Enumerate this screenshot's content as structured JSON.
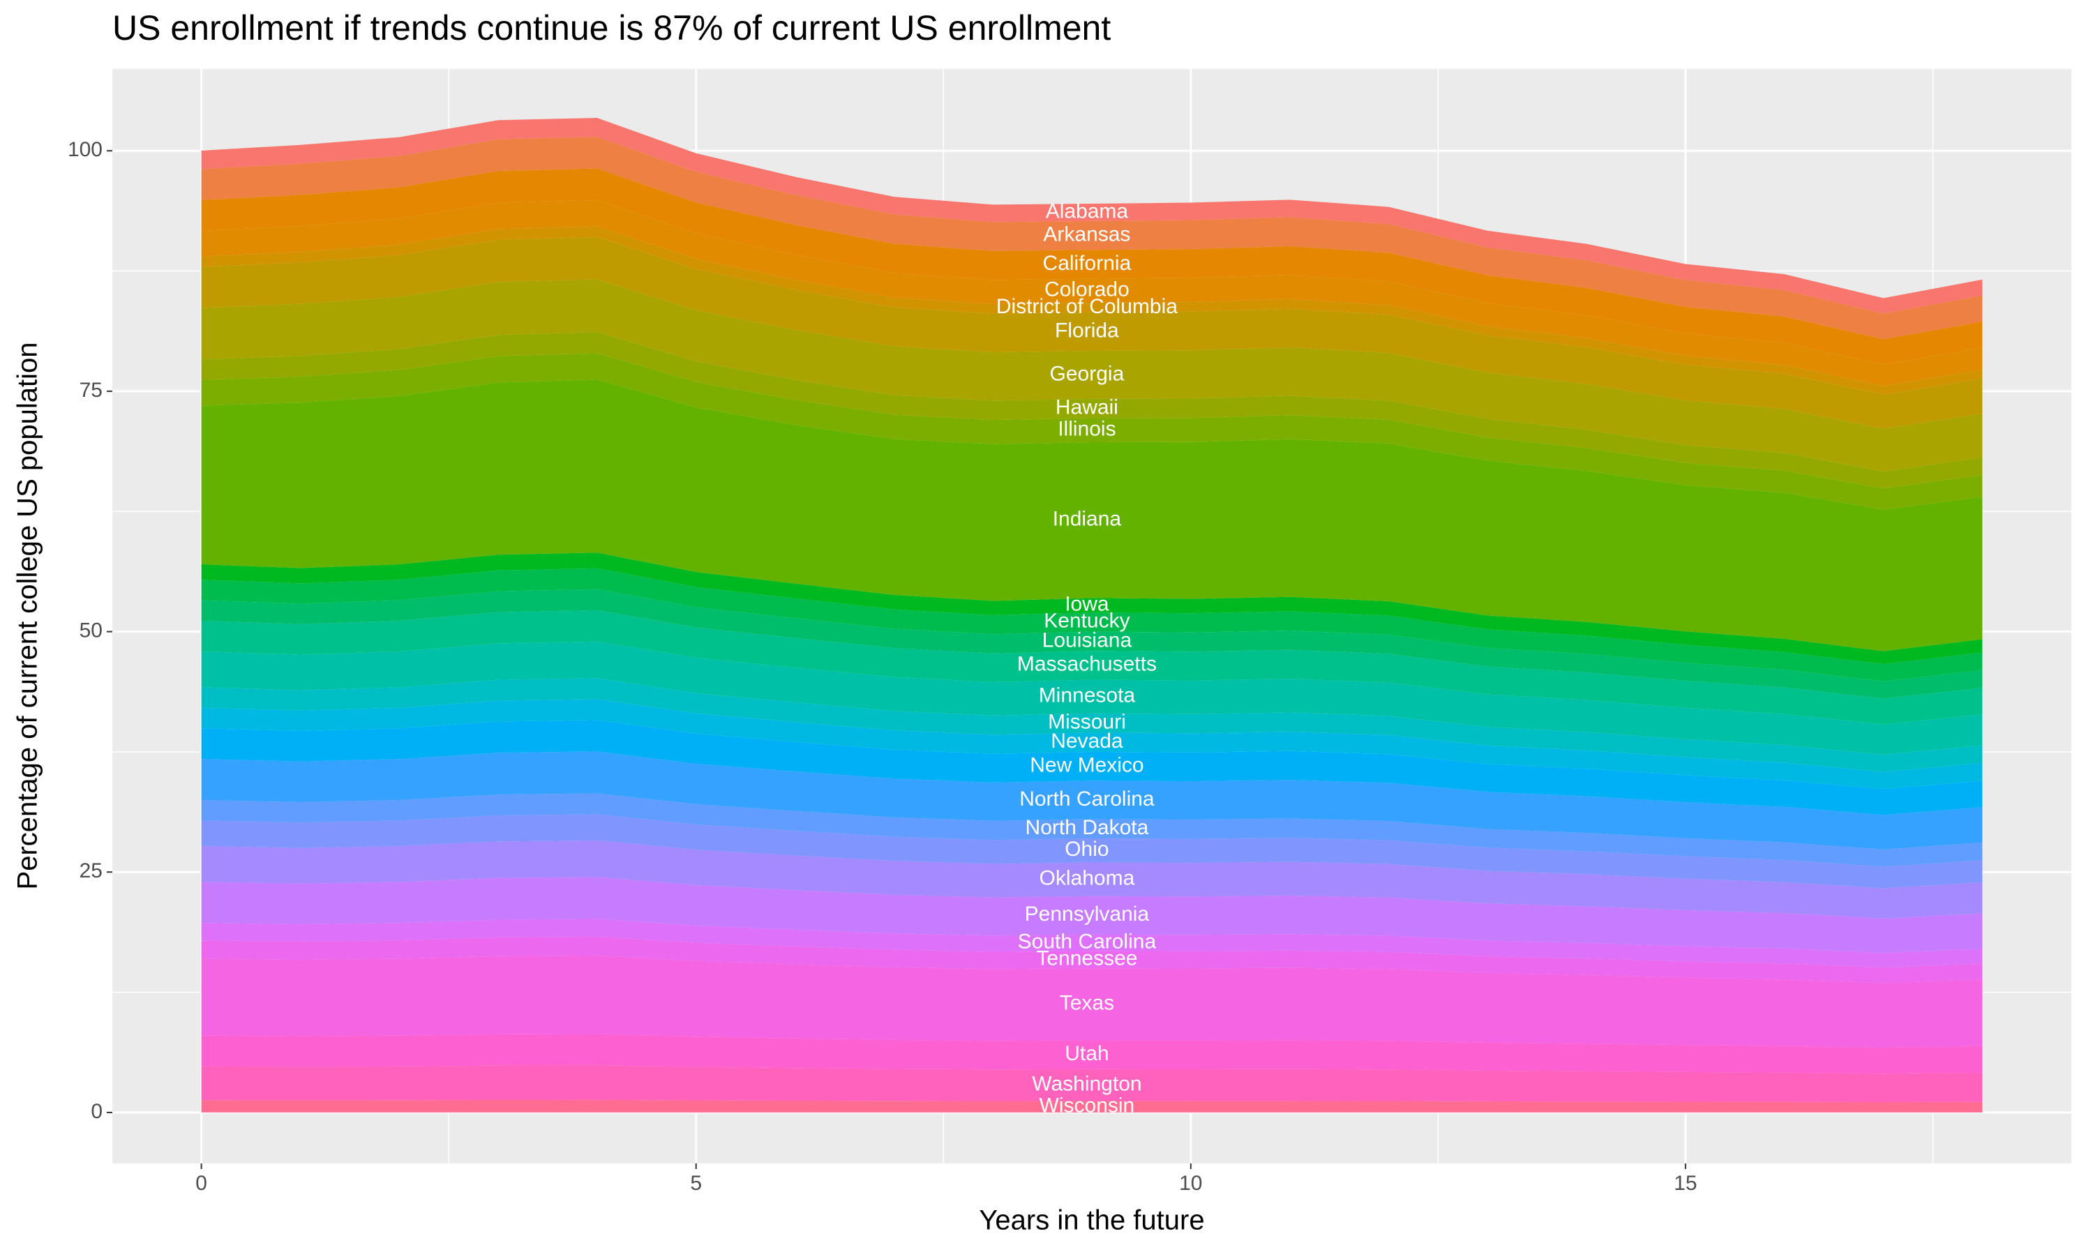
{
  "chart_data": {
    "type": "stacked_area",
    "title": "US enrollment if trends continue is 87% of current US enrollment",
    "x_label": "Years in the future",
    "y_label": "Percentage of current college US population",
    "x": [
      0,
      1,
      2,
      3,
      4,
      5,
      6,
      7,
      8,
      9,
      10,
      11,
      12,
      13,
      14,
      15,
      16,
      17,
      18
    ],
    "xlim": [
      -0.9,
      18.9
    ],
    "xticks": [
      0,
      5,
      10,
      15
    ],
    "ylim": [
      -5.3,
      108.5
    ],
    "yticks": [
      0,
      25,
      50,
      75,
      100
    ],
    "grid": true,
    "series": [
      {
        "name": "Alabama",
        "color": "#f8766d",
        "values": [
          1.92,
          1.95,
          1.95,
          1.98,
          1.97,
          1.92,
          1.87,
          1.83,
          1.81,
          1.8,
          1.81,
          1.81,
          1.79,
          1.74,
          1.71,
          1.67,
          1.65,
          1.6,
          1.64
        ]
      },
      {
        "name": "Arkansas",
        "color": "#ee8044",
        "values": [
          3.21,
          3.24,
          3.26,
          3.3,
          3.29,
          3.2,
          3.12,
          3.05,
          3.01,
          3.0,
          3.01,
          3.01,
          2.98,
          2.89,
          2.86,
          2.78,
          2.75,
          2.66,
          2.73
        ]
      },
      {
        "name": "California",
        "color": "#e58700",
        "values": [
          3.21,
          3.24,
          3.26,
          3.3,
          3.29,
          3.2,
          3.12,
          3.05,
          3.01,
          3.0,
          3.01,
          3.01,
          2.98,
          2.89,
          2.86,
          2.78,
          2.75,
          2.66,
          2.73
        ]
      },
      {
        "name": "Colorado",
        "color": "#e08b00",
        "values": [
          2.67,
          2.7,
          2.71,
          2.75,
          2.74,
          2.66,
          2.6,
          2.54,
          2.51,
          2.5,
          2.51,
          2.51,
          2.48,
          2.41,
          2.38,
          2.32,
          2.29,
          2.22,
          2.28
        ]
      },
      {
        "name": "District of Columbia",
        "color": "#d29300",
        "values": [
          1.07,
          1.08,
          1.09,
          1.1,
          1.1,
          1.07,
          1.04,
          1.02,
          1.0,
          1.0,
          1.0,
          1.0,
          0.99,
          0.96,
          0.95,
          0.93,
          0.92,
          0.89,
          0.91
        ]
      },
      {
        "name": "Florida",
        "color": "#c09b00",
        "values": [
          4.28,
          4.32,
          4.34,
          4.4,
          4.39,
          4.26,
          4.16,
          4.06,
          4.02,
          4.0,
          4.02,
          4.02,
          3.97,
          3.86,
          3.81,
          3.71,
          3.66,
          3.55,
          3.64
        ]
      },
      {
        "name": "Georgia",
        "color": "#a9a400",
        "values": [
          5.35,
          5.41,
          5.43,
          5.51,
          5.49,
          5.33,
          5.2,
          5.08,
          5.02,
          5.0,
          5.02,
          5.02,
          4.96,
          4.82,
          4.76,
          4.64,
          4.58,
          4.44,
          4.56
        ]
      },
      {
        "name": "Hawaii",
        "color": "#94a900",
        "values": [
          2.14,
          2.16,
          2.17,
          2.2,
          2.19,
          2.13,
          2.08,
          2.03,
          2.01,
          2.0,
          2.01,
          2.01,
          1.98,
          1.93,
          1.9,
          1.85,
          1.83,
          1.77,
          1.82
        ]
      },
      {
        "name": "Illinois",
        "color": "#7cae00",
        "values": [
          2.67,
          2.7,
          2.71,
          2.75,
          2.74,
          2.66,
          2.6,
          2.54,
          2.51,
          2.5,
          2.51,
          2.51,
          2.48,
          2.41,
          2.38,
          2.32,
          2.29,
          2.22,
          2.28
        ]
      },
      {
        "name": "Indiana",
        "color": "#64b200",
        "values": [
          16.5,
          17.2,
          17.5,
          17.9,
          18.0,
          17.1,
          16.5,
          16.2,
          16.3,
          16.2,
          16.3,
          16.4,
          16.4,
          16.1,
          15.7,
          15.2,
          15.2,
          14.7,
          14.8
        ]
      },
      {
        "name": "Iowa",
        "color": "#00b81f",
        "values": [
          1.6,
          1.59,
          1.6,
          1.63,
          1.63,
          1.58,
          1.54,
          1.51,
          1.49,
          1.5,
          1.5,
          1.5,
          1.49,
          1.45,
          1.43,
          1.4,
          1.38,
          1.35,
          1.38
        ]
      },
      {
        "name": "Kentucky",
        "color": "#00bb4e",
        "values": [
          2.13,
          2.12,
          2.13,
          2.17,
          2.18,
          2.1,
          2.06,
          2.01,
          1.99,
          2.0,
          2.0,
          2.0,
          1.99,
          1.93,
          1.91,
          1.87,
          1.84,
          1.79,
          1.84
        ]
      },
      {
        "name": "Louisiana",
        "color": "#00bd6c",
        "values": [
          2.13,
          2.12,
          2.13,
          2.17,
          2.18,
          2.1,
          2.06,
          2.01,
          1.99,
          2.0,
          2.0,
          2.0,
          1.99,
          1.93,
          1.91,
          1.87,
          1.84,
          1.79,
          1.84
        ]
      },
      {
        "name": "Massachusetts",
        "color": "#00c08b",
        "values": [
          3.2,
          3.17,
          3.2,
          3.25,
          3.26,
          3.15,
          3.08,
          3.02,
          2.98,
          3.0,
          2.99,
          3.01,
          2.98,
          2.9,
          2.86,
          2.81,
          2.76,
          2.69,
          2.76
        ]
      },
      {
        "name": "Minnesota",
        "color": "#00c1a7",
        "values": [
          3.73,
          3.7,
          3.73,
          3.79,
          3.81,
          3.68,
          3.6,
          3.52,
          3.48,
          3.5,
          3.49,
          3.51,
          3.48,
          3.38,
          3.34,
          3.27,
          3.22,
          3.14,
          3.22
        ]
      },
      {
        "name": "Missouri",
        "color": "#00bfc4",
        "values": [
          2.13,
          2.12,
          2.13,
          2.17,
          2.18,
          2.1,
          2.06,
          2.01,
          1.99,
          2.0,
          2.0,
          2.0,
          1.99,
          1.93,
          1.91,
          1.87,
          1.84,
          1.79,
          1.84
        ]
      },
      {
        "name": "Nevada",
        "color": "#00b9e3",
        "values": [
          2.13,
          2.12,
          2.13,
          2.17,
          2.18,
          2.1,
          2.06,
          2.01,
          1.99,
          2.0,
          2.0,
          2.0,
          1.99,
          1.93,
          1.91,
          1.87,
          1.84,
          1.79,
          1.84
        ]
      },
      {
        "name": "New Mexico",
        "color": "#00b0f6",
        "values": [
          3.2,
          3.17,
          3.2,
          3.25,
          3.26,
          3.15,
          3.08,
          3.02,
          2.98,
          3.0,
          2.99,
          3.01,
          2.98,
          2.9,
          2.86,
          2.81,
          2.76,
          2.69,
          2.76
        ]
      },
      {
        "name": "North Carolina",
        "color": "#35a2ff",
        "values": [
          4.26,
          4.23,
          4.26,
          4.34,
          4.35,
          4.2,
          4.11,
          4.02,
          3.98,
          4.0,
          3.99,
          4.01,
          3.97,
          3.86,
          3.81,
          3.74,
          3.68,
          3.59,
          3.68
        ]
      },
      {
        "name": "North Dakota",
        "color": "#619cff",
        "values": [
          2.13,
          2.12,
          2.13,
          2.17,
          2.18,
          2.1,
          2.06,
          2.01,
          1.99,
          2.0,
          2.0,
          2.0,
          1.99,
          1.93,
          1.91,
          1.87,
          1.84,
          1.79,
          1.84
        ]
      },
      {
        "name": "Ohio",
        "color": "#8195ff",
        "values": [
          2.66,
          2.65,
          2.66,
          2.71,
          2.72,
          2.63,
          2.57,
          2.52,
          2.49,
          2.5,
          2.5,
          2.51,
          2.48,
          2.42,
          2.38,
          2.34,
          2.3,
          2.24,
          2.3
        ]
      },
      {
        "name": "Oklahoma",
        "color": "#a58aff",
        "values": [
          3.73,
          3.7,
          3.73,
          3.79,
          3.81,
          3.68,
          3.6,
          3.52,
          3.48,
          3.5,
          3.49,
          3.51,
          3.48,
          3.38,
          3.34,
          3.27,
          3.22,
          3.14,
          3.22
        ]
      },
      {
        "name": "Pennsylvania",
        "color": "#c77cff",
        "values": [
          4.26,
          4.23,
          4.26,
          4.34,
          4.35,
          4.2,
          4.11,
          4.02,
          3.98,
          4.0,
          3.99,
          4.01,
          3.97,
          3.86,
          3.81,
          3.74,
          3.68,
          3.59,
          3.68
        ]
      },
      {
        "name": "South Carolina",
        "color": "#dd71fa",
        "values": [
          1.81,
          1.8,
          1.81,
          1.84,
          1.85,
          1.79,
          1.75,
          1.71,
          1.69,
          1.7,
          1.7,
          1.7,
          1.69,
          1.64,
          1.62,
          1.59,
          1.57,
          1.52,
          1.56
        ]
      },
      {
        "name": "Tennessee",
        "color": "#ec69ef",
        "values": [
          1.92,
          1.9,
          1.92,
          1.95,
          1.96,
          1.89,
          1.85,
          1.81,
          1.79,
          1.8,
          1.8,
          1.8,
          1.79,
          1.74,
          1.72,
          1.68,
          1.66,
          1.61,
          1.66
        ]
      },
      {
        "name": "Texas",
        "color": "#f564e3",
        "values": [
          7.99,
          7.94,
          7.99,
          8.13,
          8.16,
          7.88,
          7.71,
          7.55,
          7.46,
          7.5,
          7.49,
          7.52,
          7.45,
          7.25,
          7.15,
          7.01,
          6.91,
          6.73,
          6.9
        ]
      },
      {
        "name": "Utah",
        "color": "#fd61d1",
        "values": [
          3.2,
          3.17,
          3.2,
          3.25,
          3.26,
          3.15,
          3.08,
          3.02,
          2.98,
          3.0,
          2.99,
          3.01,
          2.98,
          2.9,
          2.86,
          2.81,
          2.76,
          2.69,
          2.76
        ]
      },
      {
        "name": "Washington",
        "color": "#ff62bc",
        "values": [
          3.51,
          3.49,
          3.51,
          3.58,
          3.59,
          3.47,
          3.39,
          3.32,
          3.28,
          3.3,
          3.29,
          3.31,
          3.28,
          3.19,
          3.14,
          3.09,
          3.04,
          2.96,
          3.04
        ]
      },
      {
        "name": "Wisconsin",
        "color": "#ff6c91",
        "values": [
          1.28,
          1.27,
          1.28,
          1.3,
          1.31,
          1.26,
          1.23,
          1.21,
          1.19,
          1.2,
          1.2,
          1.2,
          1.19,
          1.16,
          1.14,
          1.12,
          1.11,
          1.08,
          1.1
        ]
      }
    ]
  }
}
